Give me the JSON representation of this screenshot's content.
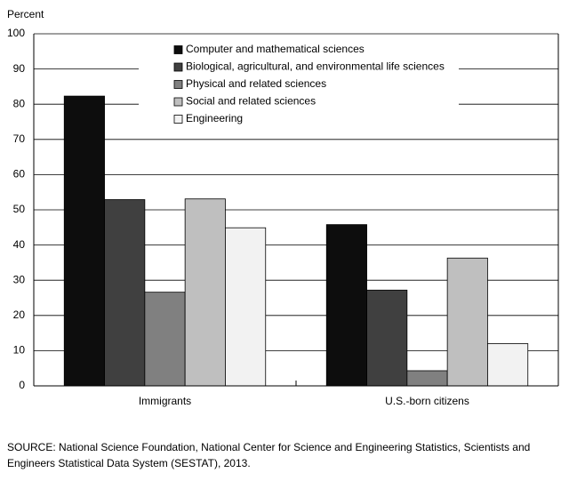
{
  "chart_data": {
    "type": "bar",
    "y_label": "Percent",
    "categories": [
      "Immigrants",
      "U.S.-born citizens"
    ],
    "series": [
      {
        "name": "Computer and mathematical sciences",
        "color": "#0d0d0d",
        "values": [
          82.3,
          45.8
        ]
      },
      {
        "name": "Biological, agricultural, and environmental life sciences",
        "color": "#404040",
        "values": [
          52.9,
          27.2
        ]
      },
      {
        "name": "Physical and related sciences",
        "color": "#808080",
        "values": [
          26.6,
          4.3
        ]
      },
      {
        "name": "Social and related sciences",
        "color": "#bfbfbf",
        "values": [
          53.1,
          36.3
        ]
      },
      {
        "name": "Engineering",
        "color": "#f2f2f2",
        "values": [
          44.9,
          12.0
        ]
      }
    ],
    "ylim": [
      0,
      100
    ],
    "yticks": [
      0,
      10,
      20,
      30,
      40,
      50,
      60,
      70,
      80,
      90,
      100
    ],
    "grid": true,
    "legend": "top-left",
    "note": [
      "SOURCE: National Science Foundation, National Center for Science and Engineering Statistics, Scientists and",
      "Engineers Statistical Data System (SESTAT), 2013."
    ]
  }
}
